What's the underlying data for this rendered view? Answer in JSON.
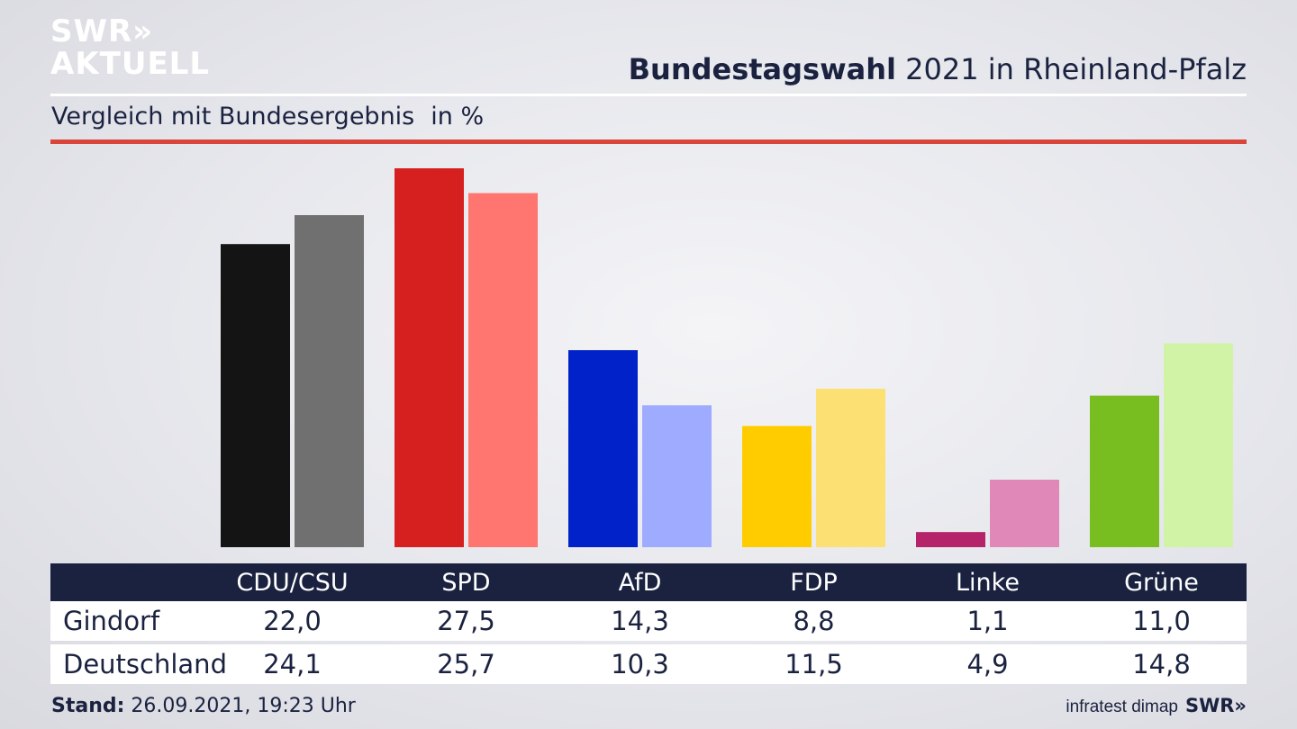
{
  "logo": {
    "line1": "SWR»",
    "line2": "AKTUELL"
  },
  "header": {
    "title_bold": "Bundestagswahl",
    "title_rest": " 2021 in Rheinland-Pfalz"
  },
  "subheader": {
    "text": "Vergleich mit Bundesergebnis",
    "unit": "in %"
  },
  "footer": {
    "stand_label": "Stand:",
    "stand_value": " 26.09.2021, 19:23 Uhr",
    "source": "infratest dimap",
    "brand": "SWR»"
  },
  "chart_data": {
    "type": "bar",
    "title": "Bundestagswahl 2021 in Rheinland-Pfalz",
    "subtitle": "Vergleich mit Bundesergebnis in %",
    "categories": [
      "CDU/CSU",
      "SPD",
      "AfD",
      "FDP",
      "Linke",
      "Grüne"
    ],
    "series": [
      {
        "name": "Gindorf",
        "values": [
          22.0,
          27.5,
          14.3,
          8.8,
          1.1,
          11.0
        ],
        "labels": [
          "22,0",
          "27,5",
          "14,3",
          "8,8",
          "1,1",
          "11,0"
        ]
      },
      {
        "name": "Deutschland",
        "values": [
          24.1,
          25.7,
          10.3,
          11.5,
          4.9,
          14.8
        ],
        "labels": [
          "24,1",
          "25,7",
          "10,3",
          "11,5",
          "4,9",
          "14,8"
        ]
      }
    ],
    "colors": {
      "Gindorf": [
        "#141414",
        "#d61f1f",
        "#0022c8",
        "#ffcc00",
        "#b5246a",
        "#78be20"
      ],
      "Deutschland": [
        "#717070",
        "#ff7570",
        "#9eabff",
        "#fde074",
        "#e088b8",
        "#d1f3a6"
      ]
    },
    "ylim": [
      0,
      27.5
    ],
    "grid": false,
    "legend": "table-below"
  }
}
